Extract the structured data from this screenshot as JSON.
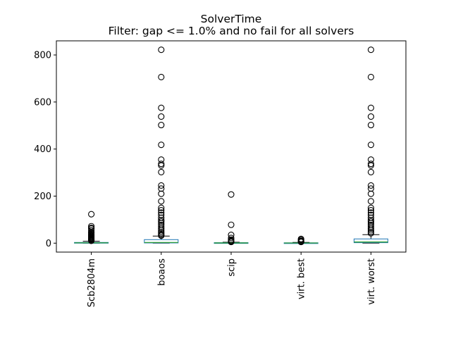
{
  "chart_data": {
    "type": "box",
    "title": "SolverTime",
    "subtitle": "Filter: gap <= 1.0% and no fail for all solvers",
    "xlabel": "",
    "ylabel": "",
    "ylim": [
      -38,
      860
    ],
    "yticks": [
      0,
      200,
      400,
      600,
      800
    ],
    "ytick_labels": [
      "0",
      "200",
      "400",
      "600",
      "800"
    ],
    "grid": false,
    "categories": [
      "Scb2804m",
      "boaos",
      "scip",
      "virt. best",
      "virt. worst"
    ],
    "boxes": [
      {
        "name": "Scb2804m",
        "whisker_low": 0,
        "q1": 0.5,
        "median": 1.5,
        "q3": 3,
        "whisker_high": 8,
        "fliers": [
          123,
          72,
          65,
          62,
          55,
          48,
          44,
          40,
          36,
          33,
          30,
          27,
          24,
          21,
          18,
          16,
          14,
          12,
          10
        ]
      },
      {
        "name": "boaos",
        "whisker_low": 0,
        "q1": 1,
        "median": 3,
        "q3": 15,
        "whisker_high": 30,
        "fliers": [
          822,
          706,
          575,
          538,
          502,
          418,
          355,
          337,
          330,
          302,
          245,
          232,
          210,
          178,
          150,
          140,
          130,
          120,
          108,
          98,
          92,
          85,
          78,
          70,
          62,
          55,
          48,
          42,
          36,
          32
        ]
      },
      {
        "name": "scip",
        "whisker_low": 0,
        "q1": 0.3,
        "median": 1,
        "q3": 2,
        "whisker_high": 4,
        "fliers": [
          207,
          78,
          35,
          22,
          15,
          10,
          7,
          5
        ]
      },
      {
        "name": "virt. best",
        "whisker_low": 0,
        "q1": 0.2,
        "median": 0.8,
        "q3": 1.5,
        "whisker_high": 3,
        "fliers": [
          18,
          14,
          10,
          7,
          5
        ]
      },
      {
        "name": "virt. worst",
        "whisker_low": 0,
        "q1": 2,
        "median": 5,
        "q3": 18,
        "whisker_high": 36,
        "fliers": [
          822,
          706,
          575,
          538,
          502,
          418,
          355,
          337,
          330,
          302,
          245,
          232,
          210,
          178,
          150,
          140,
          130,
          120,
          108,
          98,
          92,
          85,
          78,
          70,
          62,
          55,
          48,
          42
        ]
      }
    ],
    "colors": {
      "box": "#1f77b4",
      "median": "#2ca02c",
      "whisker": "#000000",
      "flier": "#000000"
    }
  }
}
